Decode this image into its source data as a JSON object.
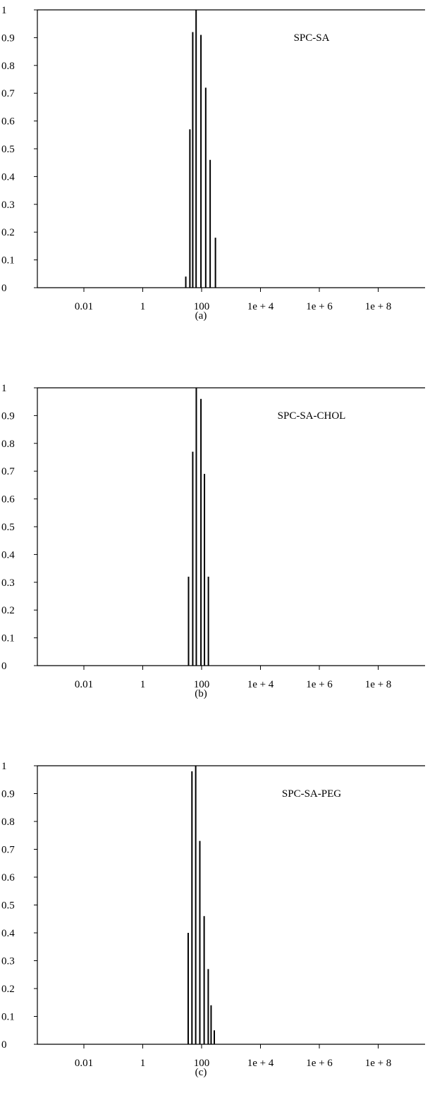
{
  "chart_data": [
    {
      "type": "bar",
      "legend": "SPC-SA",
      "caption": "(a)",
      "xscale": "log",
      "xlim": [
        0.0001,
        1000000000000
      ],
      "ylim": [
        0,
        1
      ],
      "xticks": [
        {
          "value": 0.01,
          "label": "0.01"
        },
        {
          "value": 1,
          "label": "1"
        },
        {
          "value": 100,
          "label": "100"
        },
        {
          "value": 10000,
          "label": "1e + 4"
        },
        {
          "value": 1000000,
          "label": "1e + 6"
        },
        {
          "value": 100000000,
          "label": "1e + 8"
        }
      ],
      "yticks": [
        {
          "value": 0,
          "label": "0"
        },
        {
          "value": 0.1,
          "label": "0.1"
        },
        {
          "value": 0.2,
          "label": "0.2"
        },
        {
          "value": 0.3,
          "label": "0.3"
        },
        {
          "value": 0.4,
          "label": "0.4"
        },
        {
          "value": 0.5,
          "label": "0.5"
        },
        {
          "value": 0.6,
          "label": "0.6"
        },
        {
          "value": 0.7,
          "label": "0.7"
        },
        {
          "value": 0.8,
          "label": "0.8"
        },
        {
          "value": 0.9,
          "label": "0.9"
        },
        {
          "value": 1,
          "label": "1"
        }
      ],
      "grid": false,
      "legend_position": "top-right",
      "x": [
        29,
        40,
        50,
        65,
        95,
        138,
        195,
        295
      ],
      "values": [
        0.04,
        0.57,
        0.92,
        1.0,
        0.91,
        0.72,
        0.46,
        0.18
      ]
    },
    {
      "type": "bar",
      "legend": "SPC-SA-CHOL",
      "caption": "(b)",
      "xscale": "log",
      "xlim": [
        0.0001,
        1000000000000
      ],
      "ylim": [
        0,
        1
      ],
      "xticks": [
        {
          "value": 0.01,
          "label": "0.01"
        },
        {
          "value": 1,
          "label": "1"
        },
        {
          "value": 100,
          "label": "100"
        },
        {
          "value": 10000,
          "label": "1e + 4"
        },
        {
          "value": 1000000,
          "label": "1e + 6"
        },
        {
          "value": 100000000,
          "label": "1e + 8"
        }
      ],
      "yticks": [
        {
          "value": 0,
          "label": "0"
        },
        {
          "value": 0.1,
          "label": "0.1"
        },
        {
          "value": 0.2,
          "label": "0.2"
        },
        {
          "value": 0.3,
          "label": "0.3"
        },
        {
          "value": 0.4,
          "label": "0.4"
        },
        {
          "value": 0.5,
          "label": "0.5"
        },
        {
          "value": 0.6,
          "label": "0.6"
        },
        {
          "value": 0.7,
          "label": "0.7"
        },
        {
          "value": 0.8,
          "label": "0.8"
        },
        {
          "value": 0.9,
          "label": "0.9"
        },
        {
          "value": 1,
          "label": "1"
        }
      ],
      "grid": false,
      "legend_position": "top-right",
      "x": [
        36,
        50,
        66,
        95,
        125,
        170
      ],
      "values": [
        0.32,
        0.77,
        1.0,
        0.96,
        0.69,
        0.32
      ]
    },
    {
      "type": "bar",
      "legend": "SPC-SA-PEG",
      "caption": "(c)",
      "xscale": "log",
      "xlim": [
        0.0001,
        1000000000000
      ],
      "ylim": [
        0,
        1
      ],
      "xticks": [
        {
          "value": 0.01,
          "label": "0.01"
        },
        {
          "value": 1,
          "label": "1"
        },
        {
          "value": 100,
          "label": "100"
        },
        {
          "value": 10000,
          "label": "1e + 4"
        },
        {
          "value": 1000000,
          "label": "1e + 6"
        },
        {
          "value": 100000000,
          "label": "1e + 8"
        }
      ],
      "yticks": [
        {
          "value": 0,
          "label": "0"
        },
        {
          "value": 0.1,
          "label": "0.1"
        },
        {
          "value": 0.2,
          "label": "0.2"
        },
        {
          "value": 0.3,
          "label": "0.3"
        },
        {
          "value": 0.4,
          "label": "0.4"
        },
        {
          "value": 0.5,
          "label": "0.5"
        },
        {
          "value": 0.6,
          "label": "0.6"
        },
        {
          "value": 0.7,
          "label": "0.7"
        },
        {
          "value": 0.8,
          "label": "0.8"
        },
        {
          "value": 0.9,
          "label": "0.9"
        },
        {
          "value": 1,
          "label": "1"
        }
      ],
      "grid": false,
      "legend_position": "top-right",
      "x": [
        35,
        47,
        63,
        87,
        122,
        168,
        210,
        270
      ],
      "values": [
        0.4,
        0.98,
        1.0,
        0.73,
        0.46,
        0.27,
        0.14,
        0.05
      ]
    }
  ]
}
